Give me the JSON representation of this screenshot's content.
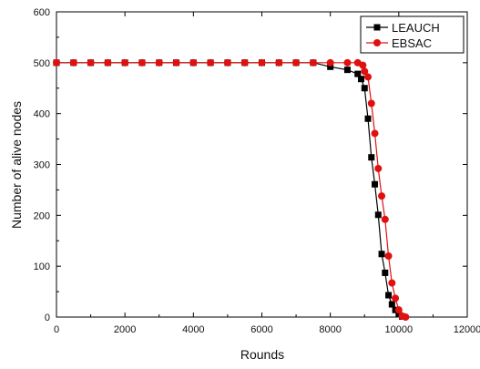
{
  "chart_data": {
    "type": "line",
    "xlabel": "Rounds",
    "ylabel": "Number of alive nodes",
    "xlim": [
      0,
      12000
    ],
    "ylim": [
      0,
      600
    ],
    "x_ticks": [
      0,
      2000,
      4000,
      6000,
      8000,
      10000,
      12000
    ],
    "y_ticks": [
      0,
      100,
      200,
      300,
      400,
      500,
      600
    ],
    "x_tick_labels": [
      "0",
      "2000",
      "4000",
      "6000",
      "8000",
      "10000",
      "12000"
    ],
    "y_tick_labels": [
      "0",
      "100",
      "200",
      "300",
      "400",
      "500",
      "600"
    ],
    "grid": false,
    "legend_position": "top-right",
    "series": [
      {
        "name": "LEAUCH",
        "color": "#000000",
        "marker": "square",
        "points": [
          [
            0,
            500
          ],
          [
            500,
            500
          ],
          [
            1000,
            500
          ],
          [
            1500,
            500
          ],
          [
            2000,
            500
          ],
          [
            2500,
            500
          ],
          [
            3000,
            500
          ],
          [
            3500,
            500
          ],
          [
            4000,
            500
          ],
          [
            4500,
            500
          ],
          [
            5000,
            500
          ],
          [
            5500,
            500
          ],
          [
            6000,
            500
          ],
          [
            6500,
            500
          ],
          [
            7000,
            500
          ],
          [
            7500,
            500
          ],
          [
            8000,
            492
          ],
          [
            8500,
            486
          ],
          [
            8800,
            478
          ],
          [
            8900,
            468
          ],
          [
            9000,
            450
          ],
          [
            9100,
            390
          ],
          [
            9200,
            314
          ],
          [
            9300,
            261
          ],
          [
            9400,
            201
          ],
          [
            9500,
            124
          ],
          [
            9600,
            87
          ],
          [
            9700,
            43
          ],
          [
            9800,
            25
          ],
          [
            9900,
            14
          ],
          [
            10000,
            7
          ],
          [
            10100,
            1
          ]
        ]
      },
      {
        "name": "EBSAC",
        "color": "#e01010",
        "marker": "circle",
        "points": [
          [
            0,
            500
          ],
          [
            500,
            500
          ],
          [
            1000,
            500
          ],
          [
            1500,
            500
          ],
          [
            2000,
            500
          ],
          [
            2500,
            500
          ],
          [
            3000,
            500
          ],
          [
            3500,
            500
          ],
          [
            4000,
            500
          ],
          [
            4500,
            500
          ],
          [
            5000,
            500
          ],
          [
            5500,
            500
          ],
          [
            6000,
            500
          ],
          [
            6500,
            500
          ],
          [
            7000,
            500
          ],
          [
            7500,
            500
          ],
          [
            8000,
            500
          ],
          [
            8500,
            500
          ],
          [
            8800,
            500
          ],
          [
            8950,
            495
          ],
          [
            9000,
            483
          ],
          [
            9100,
            472
          ],
          [
            9200,
            420
          ],
          [
            9300,
            361
          ],
          [
            9400,
            292
          ],
          [
            9500,
            238
          ],
          [
            9600,
            192
          ],
          [
            9700,
            120
          ],
          [
            9800,
            67
          ],
          [
            9900,
            37
          ],
          [
            10000,
            14
          ],
          [
            10100,
            2
          ],
          [
            10200,
            0
          ]
        ]
      }
    ]
  }
}
